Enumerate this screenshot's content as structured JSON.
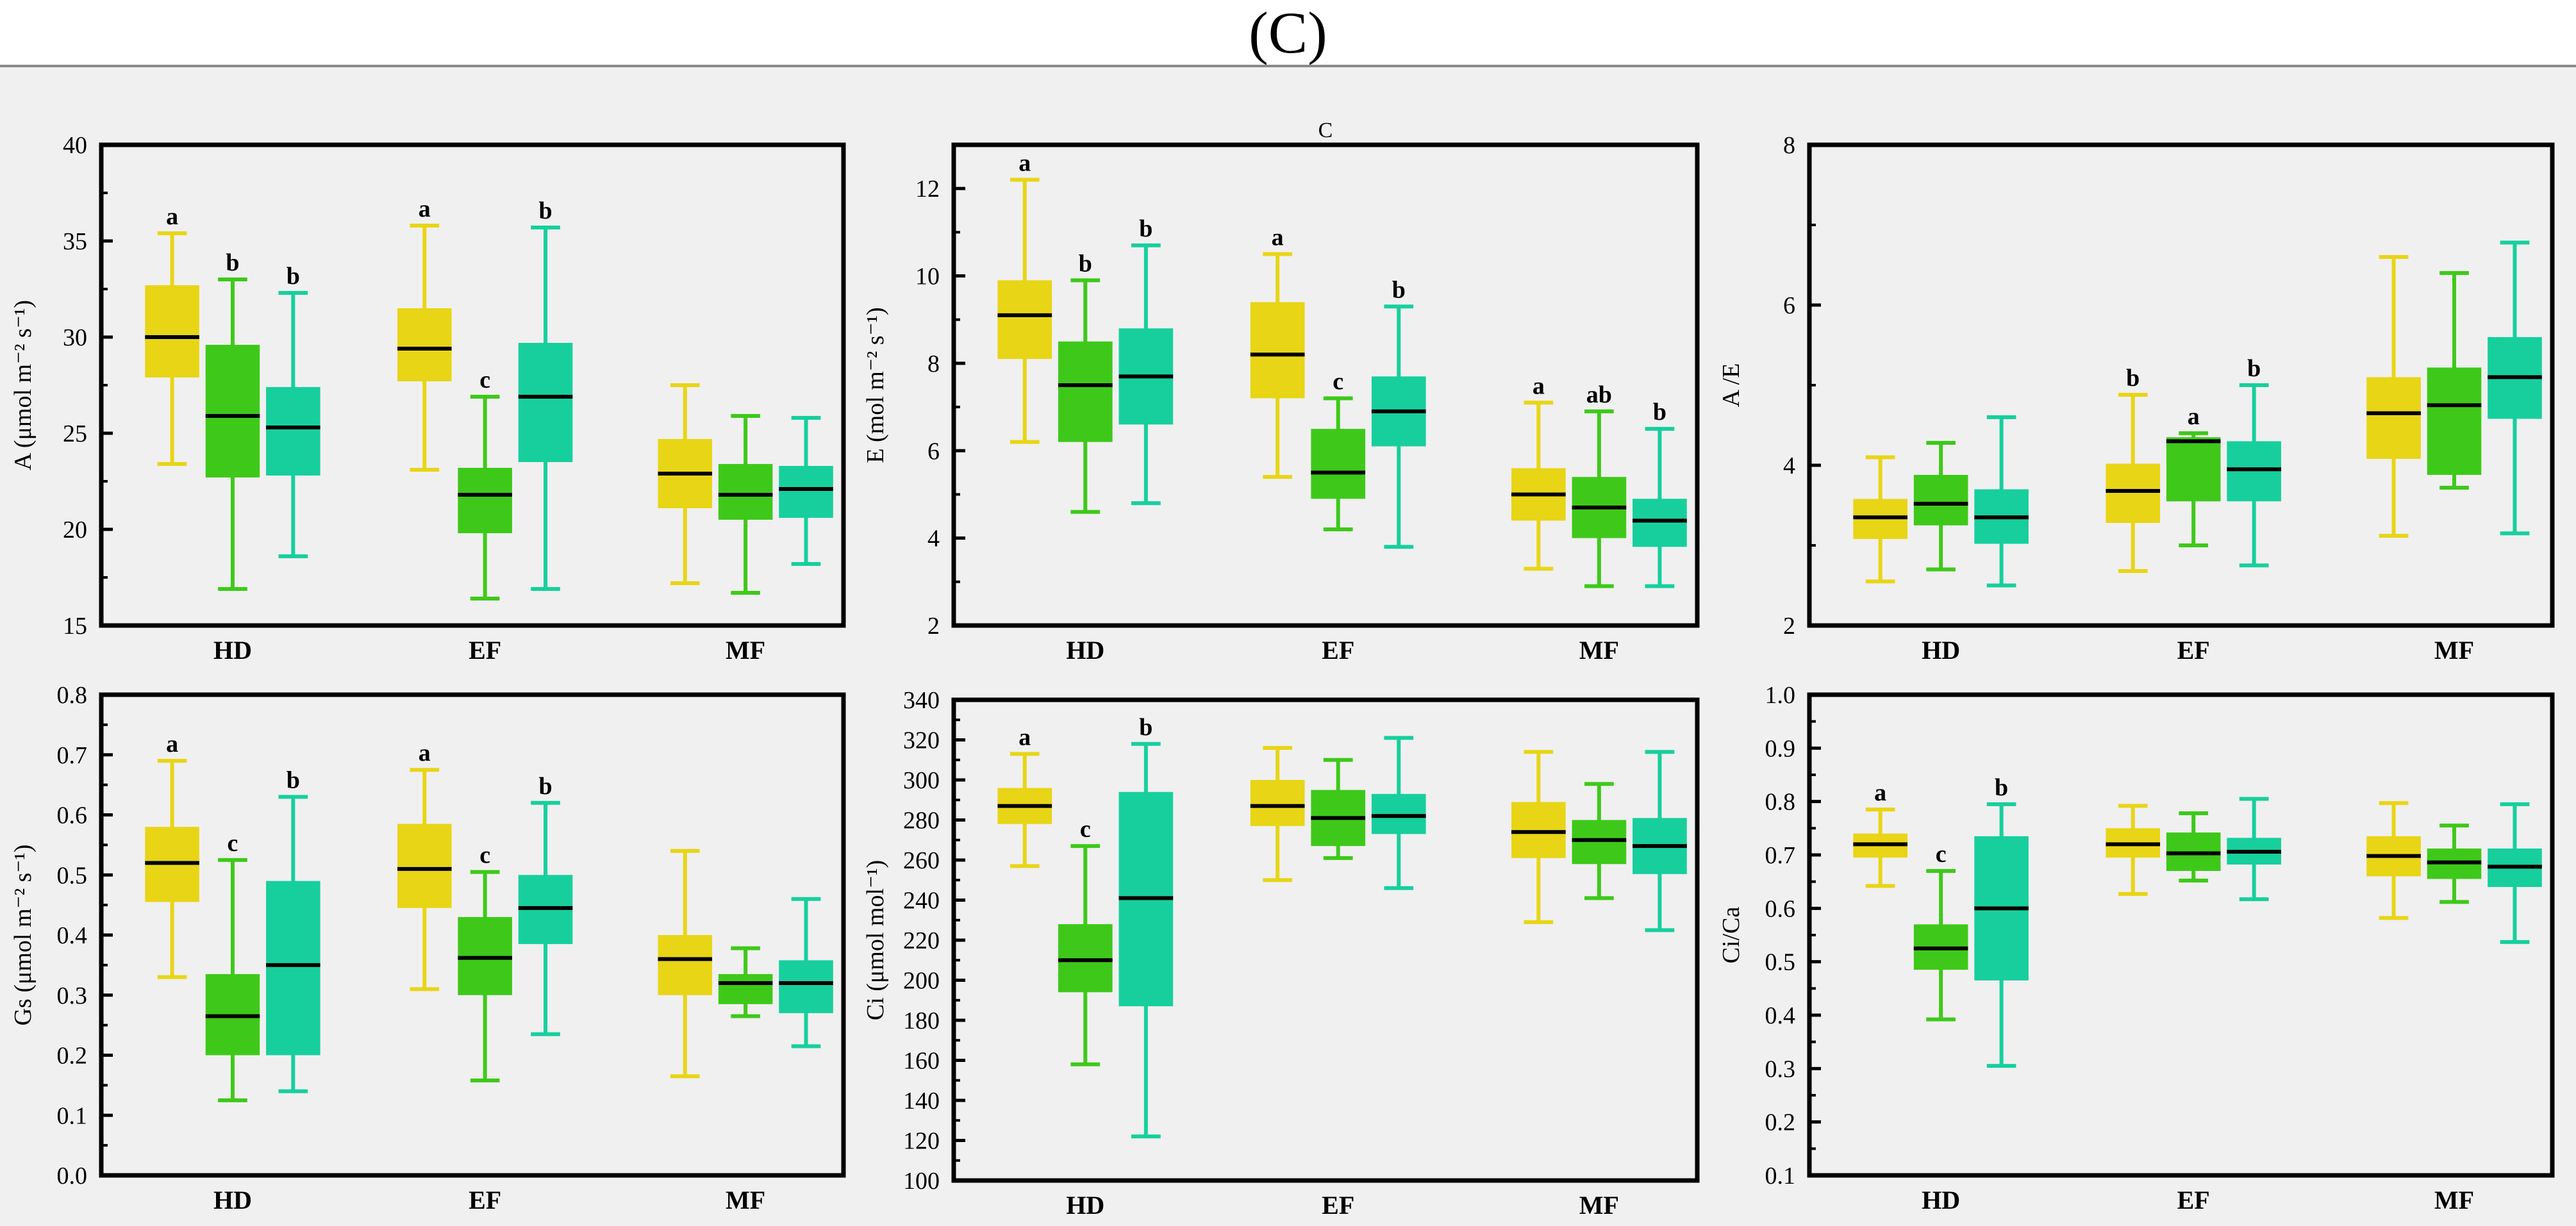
{
  "figure": {
    "title": "(C)"
  },
  "palette": {
    "yellow": "#e8d516",
    "green": "#3ec91a",
    "teal": "#17cf9d",
    "median": "#000000",
    "frame": "#000000"
  },
  "chart_data": [
    {
      "type": "box",
      "title": "",
      "ylabel": "A (μmol m⁻² s⁻¹)",
      "ylim": [
        15,
        40
      ],
      "yticks": [
        15,
        20,
        25,
        30,
        35,
        40
      ],
      "categories": [
        "HD",
        "EF",
        "MF"
      ],
      "boxes": [
        [
          {
            "min": 23.4,
            "q1": 27.9,
            "median": 30.0,
            "q3": 32.7,
            "max": 35.4,
            "letter": "a"
          },
          {
            "min": 16.9,
            "q1": 22.7,
            "median": 25.9,
            "q3": 29.6,
            "max": 33.0,
            "letter": "b"
          },
          {
            "min": 18.6,
            "q1": 22.8,
            "median": 25.3,
            "q3": 27.4,
            "max": 32.3,
            "letter": "b"
          }
        ],
        [
          {
            "min": 23.1,
            "q1": 27.7,
            "median": 29.4,
            "q3": 31.5,
            "max": 35.8,
            "letter": "a"
          },
          {
            "min": 16.4,
            "q1": 19.8,
            "median": 21.8,
            "q3": 23.2,
            "max": 26.9,
            "letter": "c"
          },
          {
            "min": 16.9,
            "q1": 23.5,
            "median": 26.9,
            "q3": 29.7,
            "max": 35.7,
            "letter": "b"
          }
        ],
        [
          {
            "min": 17.2,
            "q1": 21.1,
            "median": 22.9,
            "q3": 24.7,
            "max": 27.5,
            "letter": ""
          },
          {
            "min": 16.7,
            "q1": 20.5,
            "median": 21.8,
            "q3": 23.4,
            "max": 25.9,
            "letter": ""
          },
          {
            "min": 18.2,
            "q1": 20.6,
            "median": 22.1,
            "q3": 23.3,
            "max": 25.8,
            "letter": ""
          }
        ]
      ]
    },
    {
      "type": "box",
      "title": "C",
      "ylabel": "E (mol m⁻² s⁻¹)",
      "ylim": [
        2,
        13
      ],
      "yticks": [
        2,
        4,
        6,
        8,
        10,
        12
      ],
      "categories": [
        "HD",
        "EF",
        "MF"
      ],
      "boxes": [
        [
          {
            "min": 6.2,
            "q1": 8.1,
            "median": 9.1,
            "q3": 9.9,
            "max": 12.2,
            "letter": "a"
          },
          {
            "min": 4.6,
            "q1": 6.2,
            "median": 7.5,
            "q3": 8.5,
            "max": 9.9,
            "letter": "b"
          },
          {
            "min": 4.8,
            "q1": 6.6,
            "median": 7.7,
            "q3": 8.8,
            "max": 10.7,
            "letter": "b"
          }
        ],
        [
          {
            "min": 5.4,
            "q1": 7.2,
            "median": 8.2,
            "q3": 9.4,
            "max": 10.5,
            "letter": "a"
          },
          {
            "min": 4.2,
            "q1": 4.9,
            "median": 5.5,
            "q3": 6.5,
            "max": 7.2,
            "letter": "c"
          },
          {
            "min": 3.8,
            "q1": 6.1,
            "median": 6.9,
            "q3": 7.7,
            "max": 9.3,
            "letter": "b"
          }
        ],
        [
          {
            "min": 3.3,
            "q1": 4.4,
            "median": 5.0,
            "q3": 5.6,
            "max": 7.1,
            "letter": "a"
          },
          {
            "min": 2.9,
            "q1": 4.0,
            "median": 4.7,
            "q3": 5.4,
            "max": 6.9,
            "letter": "ab"
          },
          {
            "min": 2.9,
            "q1": 3.8,
            "median": 4.4,
            "q3": 4.9,
            "max": 6.5,
            "letter": "b"
          }
        ]
      ]
    },
    {
      "type": "box",
      "title": "",
      "ylabel": "A /E",
      "ylim": [
        2,
        8
      ],
      "yticks": [
        2,
        4,
        6,
        8
      ],
      "categories": [
        "HD",
        "EF",
        "MF"
      ],
      "boxes": [
        [
          {
            "min": 2.55,
            "q1": 3.08,
            "median": 3.35,
            "q3": 3.58,
            "max": 4.1,
            "letter": ""
          },
          {
            "min": 2.7,
            "q1": 3.25,
            "median": 3.52,
            "q3": 3.88,
            "max": 4.28,
            "letter": ""
          },
          {
            "min": 2.5,
            "q1": 3.02,
            "median": 3.35,
            "q3": 3.7,
            "max": 4.6,
            "letter": ""
          }
        ],
        [
          {
            "min": 2.68,
            "q1": 3.28,
            "median": 3.68,
            "q3": 4.02,
            "max": 4.88,
            "letter": "b"
          },
          {
            "min": 3.0,
            "q1": 3.55,
            "median": 4.3,
            "q3": 4.35,
            "max": 4.4,
            "letter": "a"
          },
          {
            "min": 2.75,
            "q1": 3.55,
            "median": 3.95,
            "q3": 4.3,
            "max": 5.0,
            "letter": "b"
          }
        ],
        [
          {
            "min": 3.12,
            "q1": 4.08,
            "median": 4.65,
            "q3": 5.1,
            "max": 6.6,
            "letter": ""
          },
          {
            "min": 3.72,
            "q1": 3.88,
            "median": 4.75,
            "q3": 5.22,
            "max": 6.4,
            "letter": ""
          },
          {
            "min": 3.15,
            "q1": 4.58,
            "median": 5.1,
            "q3": 5.6,
            "max": 6.78,
            "letter": ""
          }
        ]
      ]
    },
    {
      "type": "box",
      "title": "",
      "ylabel": "Gs (μmol m⁻² s⁻¹)",
      "ylim": [
        0.0,
        0.8
      ],
      "yticks": [
        0.0,
        0.1,
        0.2,
        0.3,
        0.4,
        0.5,
        0.6,
        0.7,
        0.8
      ],
      "categories": [
        "HD",
        "EF",
        "MF"
      ],
      "boxes": [
        [
          {
            "min": 0.33,
            "q1": 0.455,
            "median": 0.52,
            "q3": 0.58,
            "max": 0.69,
            "letter": "a"
          },
          {
            "min": 0.125,
            "q1": 0.2,
            "median": 0.265,
            "q3": 0.335,
            "max": 0.525,
            "letter": "c"
          },
          {
            "min": 0.14,
            "q1": 0.2,
            "median": 0.35,
            "q3": 0.49,
            "max": 0.63,
            "letter": "b"
          }
        ],
        [
          {
            "min": 0.31,
            "q1": 0.445,
            "median": 0.51,
            "q3": 0.585,
            "max": 0.675,
            "letter": "a"
          },
          {
            "min": 0.158,
            "q1": 0.3,
            "median": 0.362,
            "q3": 0.43,
            "max": 0.505,
            "letter": "c"
          },
          {
            "min": 0.235,
            "q1": 0.385,
            "median": 0.445,
            "q3": 0.5,
            "max": 0.62,
            "letter": "b"
          }
        ],
        [
          {
            "min": 0.165,
            "q1": 0.3,
            "median": 0.36,
            "q3": 0.4,
            "max": 0.54,
            "letter": ""
          },
          {
            "min": 0.265,
            "q1": 0.285,
            "median": 0.32,
            "q3": 0.335,
            "max": 0.378,
            "letter": ""
          },
          {
            "min": 0.215,
            "q1": 0.27,
            "median": 0.32,
            "q3": 0.358,
            "max": 0.46,
            "letter": ""
          }
        ]
      ]
    },
    {
      "type": "box",
      "title": "",
      "ylabel": "Ci (μmol mol⁻¹)",
      "ylim": [
        100,
        340
      ],
      "yticks": [
        100,
        120,
        140,
        160,
        180,
        200,
        220,
        240,
        260,
        280,
        300,
        320,
        340
      ],
      "categories": [
        "HD",
        "EF",
        "MF"
      ],
      "boxes": [
        [
          {
            "min": 257,
            "q1": 278,
            "median": 287,
            "q3": 296,
            "max": 313,
            "letter": "a"
          },
          {
            "min": 158,
            "q1": 194,
            "median": 210,
            "q3": 228,
            "max": 267,
            "letter": "c"
          },
          {
            "min": 122,
            "q1": 187,
            "median": 241,
            "q3": 294,
            "max": 318,
            "letter": "b"
          }
        ],
        [
          {
            "min": 250,
            "q1": 277,
            "median": 287,
            "q3": 300,
            "max": 316,
            "letter": ""
          },
          {
            "min": 261,
            "q1": 267,
            "median": 281,
            "q3": 295,
            "max": 310,
            "letter": ""
          },
          {
            "min": 246,
            "q1": 273,
            "median": 282,
            "q3": 293,
            "max": 321,
            "letter": ""
          }
        ],
        [
          {
            "min": 229,
            "q1": 261,
            "median": 274,
            "q3": 289,
            "max": 314,
            "letter": ""
          },
          {
            "min": 241,
            "q1": 258,
            "median": 270,
            "q3": 280,
            "max": 298,
            "letter": ""
          },
          {
            "min": 225,
            "q1": 253,
            "median": 267,
            "q3": 281,
            "max": 314,
            "letter": ""
          }
        ]
      ]
    },
    {
      "type": "box",
      "title": "",
      "ylabel": "Ci/Ca",
      "ylim": [
        0.1,
        1.0
      ],
      "yticks": [
        0.1,
        0.2,
        0.3,
        0.4,
        0.5,
        0.6,
        0.7,
        0.8,
        0.9,
        1.0
      ],
      "categories": [
        "HD",
        "EF",
        "MF"
      ],
      "boxes": [
        [
          {
            "min": 0.642,
            "q1": 0.695,
            "median": 0.72,
            "q3": 0.74,
            "max": 0.785,
            "letter": "a"
          },
          {
            "min": 0.392,
            "q1": 0.485,
            "median": 0.525,
            "q3": 0.57,
            "max": 0.67,
            "letter": "c"
          },
          {
            "min": 0.305,
            "q1": 0.465,
            "median": 0.6,
            "q3": 0.735,
            "max": 0.795,
            "letter": "b"
          }
        ],
        [
          {
            "min": 0.627,
            "q1": 0.695,
            "median": 0.72,
            "q3": 0.75,
            "max": 0.792,
            "letter": ""
          },
          {
            "min": 0.652,
            "q1": 0.67,
            "median": 0.703,
            "q3": 0.742,
            "max": 0.778,
            "letter": ""
          },
          {
            "min": 0.617,
            "q1": 0.682,
            "median": 0.706,
            "q3": 0.732,
            "max": 0.805,
            "letter": ""
          }
        ],
        [
          {
            "min": 0.582,
            "q1": 0.66,
            "median": 0.698,
            "q3": 0.735,
            "max": 0.797,
            "letter": ""
          },
          {
            "min": 0.612,
            "q1": 0.655,
            "median": 0.686,
            "q3": 0.712,
            "max": 0.755,
            "letter": ""
          },
          {
            "min": 0.537,
            "q1": 0.64,
            "median": 0.678,
            "q3": 0.712,
            "max": 0.795,
            "letter": ""
          }
        ]
      ]
    }
  ]
}
